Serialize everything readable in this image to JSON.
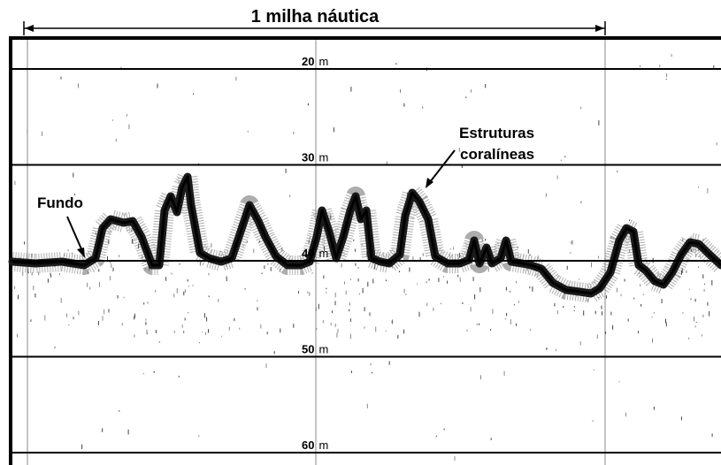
{
  "scale_bar": {
    "label": "1 milha náutica"
  },
  "depth_labels": [
    {
      "value": "20",
      "unit": "m",
      "depth": 20
    },
    {
      "value": "30",
      "unit": "m",
      "depth": 30
    },
    {
      "value": "40",
      "unit": "m",
      "depth": 40
    },
    {
      "value": "50",
      "unit": "m",
      "depth": 50
    },
    {
      "value": "60",
      "unit": "m",
      "depth": 60
    }
  ],
  "annotations": {
    "bottom": "Fundo",
    "coral_line1": "Estruturas",
    "coral_line2": "coralíneas"
  },
  "colors": {
    "background": "#ffffff",
    "ink": "#000000",
    "grid": "#999999",
    "echo": "#1a1a1a"
  }
}
